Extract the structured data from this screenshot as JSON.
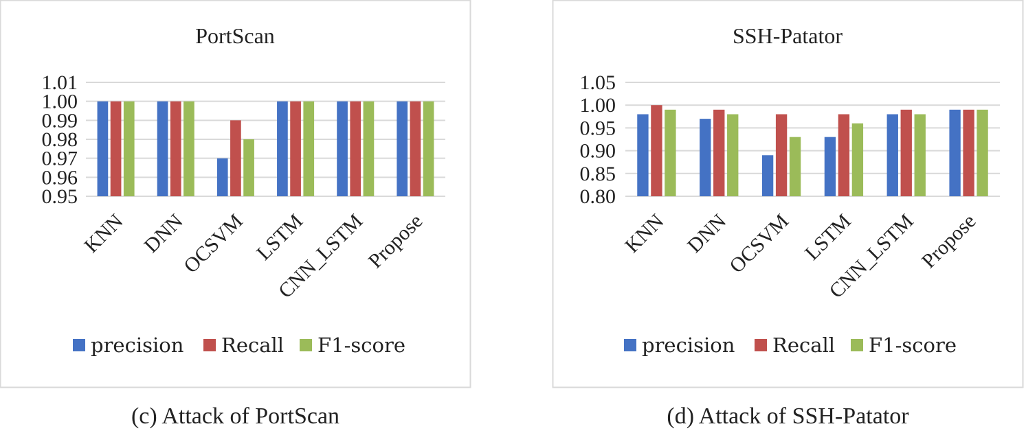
{
  "colors": {
    "precision": "#4472c4",
    "Recall": "#c0504d",
    "F1-score": "#9bbb59",
    "grid": "#d9d9d9",
    "frame": "#d9d9d9"
  },
  "chart_data": [
    {
      "type": "bar",
      "title": "PortScan",
      "categories": [
        "KNN",
        "DNN",
        "OCSVM",
        "LSTM",
        "CNN_LSTM",
        "Propose"
      ],
      "series": [
        {
          "name": "precision",
          "values": [
            1.0,
            1.0,
            0.97,
            1.0,
            1.0,
            1.0
          ]
        },
        {
          "name": "Recall",
          "values": [
            1.0,
            1.0,
            0.99,
            1.0,
            1.0,
            1.0
          ]
        },
        {
          "name": "F1-score",
          "values": [
            1.0,
            1.0,
            0.98,
            1.0,
            1.0,
            1.0
          ]
        }
      ],
      "ylim": [
        0.95,
        1.01
      ],
      "yticks": [
        "0.95",
        "0.96",
        "0.97",
        "0.98",
        "0.99",
        "1.00",
        "1.01"
      ],
      "xlabel": "",
      "ylabel": "",
      "grid": true,
      "legend": "bottom",
      "caption": "(c) Attack of PortScan"
    },
    {
      "type": "bar",
      "title": "SSH-Patator",
      "categories": [
        "KNN",
        "DNN",
        "OCSVM",
        "LSTM",
        "CNN_LSTM",
        "Propose"
      ],
      "series": [
        {
          "name": "precision",
          "values": [
            0.98,
            0.97,
            0.89,
            0.93,
            0.98,
            0.99
          ]
        },
        {
          "name": "Recall",
          "values": [
            1.0,
            0.99,
            0.98,
            0.98,
            0.99,
            0.99
          ]
        },
        {
          "name": "F1-score",
          "values": [
            0.99,
            0.98,
            0.93,
            0.96,
            0.98,
            0.99
          ]
        }
      ],
      "ylim": [
        0.8,
        1.05
      ],
      "yticks": [
        "0.80",
        "0.85",
        "0.90",
        "0.95",
        "1.00",
        "1.05"
      ],
      "xlabel": "",
      "ylabel": "",
      "grid": true,
      "legend": "bottom",
      "caption": "(d) Attack of SSH-Patator"
    }
  ]
}
